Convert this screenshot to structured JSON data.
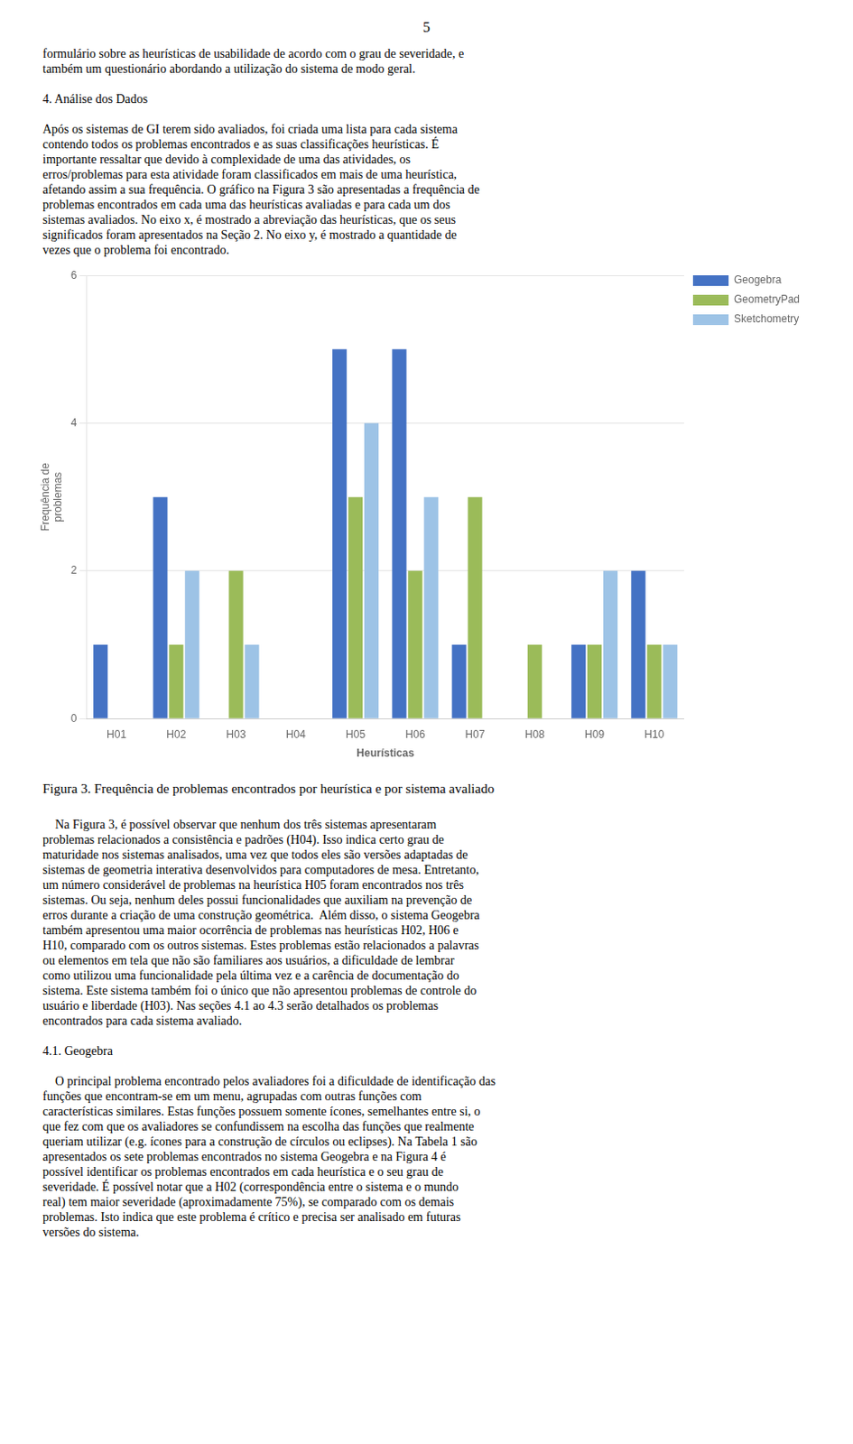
{
  "chart_data": {
    "type": "bar",
    "title": "Figura 3. Frequência de problemas encontrados por heurística e por sistema avaliado",
    "xlabel": "Heurísticas",
    "ylabel": "Frequência de\nproblemas",
    "categories": [
      "H01",
      "H02",
      "H03",
      "H04",
      "H05",
      "H06",
      "H07",
      "H08",
      "H09",
      "H10"
    ],
    "series": [
      {
        "name": "Geogebra",
        "color": "#4472C4",
        "values": [
          1,
          3,
          0,
          0,
          5,
          5,
          1,
          0,
          1,
          2
        ]
      },
      {
        "name": "GeometryPad",
        "color": "#9BBB59",
        "values": [
          0,
          1,
          2,
          0,
          3,
          2,
          3,
          1,
          1,
          1
        ]
      },
      {
        "name": "Sketchometry",
        "color": "#9DC3E6",
        "values": [
          0,
          2,
          1,
          0,
          4,
          3,
          0,
          0,
          2,
          1
        ]
      }
    ],
    "ylim": [
      0,
      6
    ],
    "yticks": [
      0,
      2,
      4,
      6
    ],
    "grid": true,
    "legend": "right",
    "annotations": [
      "5",
      "formulário sobre as heurísticas de usabilidade de acordo com o grau de severidade, e\ntambém um questionário abordando a utilização do sistema de modo geral.\n\n4. Análise dos Dados\n\nApós os sistemas de GI terem sido avaliados, foi criada uma lista para cada sistema\ncontendo todos os problemas encontrados e as suas classificações heurísticas. É\nimportante ressaltar que devido à complexidade de uma das atividades, os\nerros/problemas para esta atividade foram classificados em mais de uma heurística,\nafetando assim a sua frequência. O gráfico na Figura 3 são apresentadas a frequência de\nproblemas encontrados em cada uma das heurísticas avaliadas e para cada um dos\nsistemas avaliados. No eixo x, é mostrado a abreviação das heurísticas, que os seus\nsignificados foram apresentados na Seção 2. No eixo y, é mostrado a quantidade de\nvezes que o problema foi encontrado.",
      "    Na Figura 3, é possível observar que nenhum dos três sistemas apresentaram\nproblemas relacionados a consistência e padrões (H04). Isso indica certo grau de\nmaturidade nos sistemas analisados, uma vez que todos eles são versões adaptadas de\nsistemas de geometria interativa desenvolvidos para computadores de mesa. Entretanto,\num número considerável de problemas na heurística H05 foram encontrados nos três\nsistemas. Ou seja, nenhum deles possui funcionalidades que auxiliam na prevenção de\nerros durante a criação de uma construção geométrica.  Além disso, o sistema Geogebra\ntambém apresentou uma maior ocorrência de problemas nas heurísticas H02, H06 e\nH10, comparado com os outros sistemas. Estes problemas estão relacionados a palavras\nou elementos em tela que não são familiares aos usuários, a dificuldade de lembrar\ncomo utilizou uma funcionalidade pela última vez e a carência de documentação do\nsistema. Este sistema também foi o único que não apresentou problemas de controle do\nusuário e liberdade (H03). Nas seções 4.1 ao 4.3 serão detalhados os problemas\nencontrados para cada sistema avaliado.\n\n4.1. Geogebra\n\n    O principal problema encontrado pelos avaliadores foi a dificuldade de identificação das\nfunções que encontram-se em um menu, agrupadas com outras funções com\ncaracterísticas similares. Estas funções possuem somente ícones, semelhantes entre si, o\nque fez com que os avaliadores se confundissem na escolha das funções que realmente\nqueriam utilizar (e.g. ícones para a construção de círculos ou eclipses). Na Tabela 1 são\napresentados os sete problemas encontrados no sistema Geogebra e na Figura 4 é\npossível identificar os problemas encontrados em cada heurística e o seu grau de\nseveridade. É possível notar que a H02 (correspondência entre o sistema e o mundo\nreal) tem maior severidade (aproximadamente 75%), se comparado com os demais\nproblemas. Isto indica que este problema é crítico e precisa ser analisado em futuras\nversões do sistema."
    ]
  }
}
